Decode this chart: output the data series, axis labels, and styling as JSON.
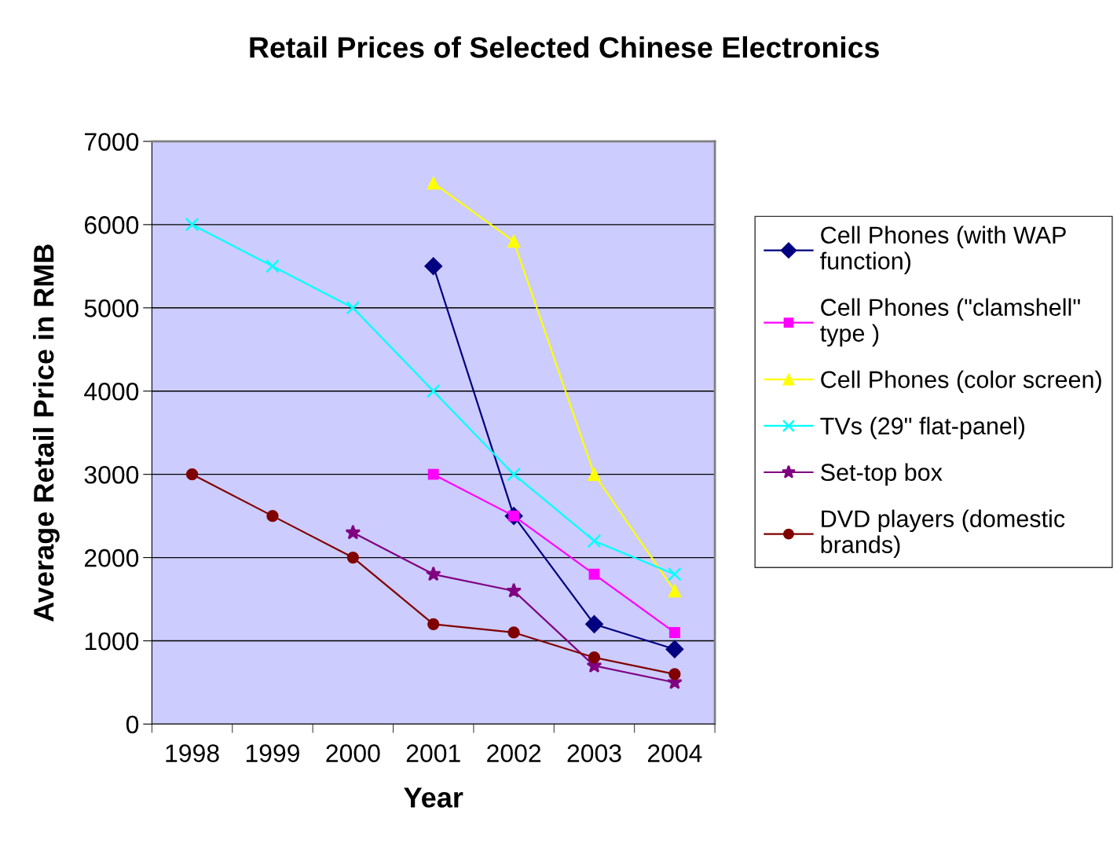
{
  "chart_data": {
    "type": "line",
    "title": "Retail Prices of Selected Chinese Electronics",
    "xlabel": "Year",
    "ylabel": "Average Retail Price in RMB",
    "categories": [
      "1998",
      "1999",
      "2000",
      "2001",
      "2002",
      "2003",
      "2004"
    ],
    "series": [
      {
        "name": "Cell Phones (with WAP function)",
        "color": "#000080",
        "marker": "diamond",
        "values": [
          null,
          null,
          null,
          5500,
          2500,
          1200,
          900
        ]
      },
      {
        "name": "Cell Phones (\"clamshell\" type )",
        "color": "#ff00ff",
        "marker": "square",
        "values": [
          null,
          null,
          null,
          3000,
          2500,
          1800,
          1100
        ]
      },
      {
        "name": "Cell Phones (color screen)",
        "color": "#ffff00",
        "marker": "triangle",
        "values": [
          null,
          null,
          null,
          6500,
          5800,
          3000,
          1600
        ]
      },
      {
        "name": "TVs (29\" flat-panel)",
        "color": "#00ffff",
        "marker": "cross",
        "values": [
          6000,
          5500,
          5000,
          4000,
          3000,
          2200,
          1800
        ]
      },
      {
        "name": "Set-top box",
        "color": "#800080",
        "marker": "star",
        "values": [
          null,
          null,
          2300,
          1800,
          1600,
          700,
          500
        ]
      },
      {
        "name": "DVD players (domestic brands)",
        "color": "#800000",
        "marker": "circle",
        "values": [
          3000,
          2500,
          2000,
          1200,
          1100,
          800,
          600
        ]
      }
    ],
    "ylim": [
      0,
      7000
    ],
    "yticks": [
      0,
      1000,
      2000,
      3000,
      4000,
      5000,
      6000,
      7000
    ],
    "grid": "y",
    "legend": "right",
    "line_style": "solid"
  }
}
